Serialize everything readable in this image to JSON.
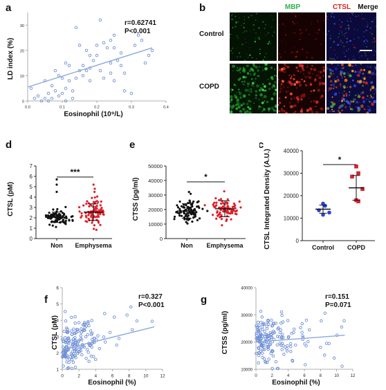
{
  "panels": {
    "a": {
      "letter": "a",
      "r": "r=0.62741",
      "p": "P<0.001",
      "xlabel": "Eosinophil (10⁹/L)",
      "ylabel": "LD index (%)",
      "xticks": [
        "0.0",
        "0.1",
        "0.2",
        "0.3",
        "0.4"
      ],
      "yticks": [
        "0",
        "10",
        "20",
        "30"
      ]
    },
    "b": {
      "letter": "b",
      "col_labels": [
        "MBP",
        "CTSL",
        "Merge"
      ],
      "col_colors": [
        "#2bb34a",
        "#e02020",
        "#111111"
      ],
      "row_labels": [
        "Control",
        "COPD"
      ]
    },
    "d": {
      "letter": "d",
      "ylabel": "CTSL (pM)",
      "stars": "***",
      "categories": [
        "Non",
        "Emphysema"
      ],
      "yticks": [
        "0",
        "1",
        "2",
        "3",
        "4",
        "5",
        "6",
        "7"
      ]
    },
    "e": {
      "letter": "e",
      "ylabel": "CTSS (pg/ml)",
      "stars": "*",
      "categories": [
        "Non",
        "Emphysema"
      ],
      "yticks": [
        "0",
        "10000",
        "20000",
        "30000",
        "40000",
        "50000"
      ]
    },
    "c": {
      "letter": "c",
      "ylabel": "CTSL Integrated Density (A.U.)",
      "stars": "*",
      "categories": [
        "Control",
        "COPD"
      ],
      "yticks": [
        "0",
        "10000",
        "20000",
        "30000",
        "40000"
      ]
    },
    "f": {
      "letter": "f",
      "r": "r=0.327",
      "p": "P<0.001",
      "xlabel": "Eosinophil (%)",
      "ylabel": "CTSL (pM)",
      "xticks": [
        "0",
        "2",
        "4",
        "6",
        "8",
        "10",
        "12"
      ],
      "yticks": [
        "1",
        "2",
        "3",
        "4",
        "5",
        "6"
      ]
    },
    "g": {
      "letter": "g",
      "r": "r=0.151",
      "p": "P=0.071",
      "xlabel": "Eosinophil (%)",
      "ylabel": "CTSS (pg/ml)",
      "xticks": [
        "0",
        "2",
        "4",
        "6",
        "8",
        "10",
        "12"
      ],
      "yticks": [
        "10000",
        "20000",
        "30000",
        "40000"
      ]
    }
  },
  "colors": {
    "scatter": "#6f8fd6",
    "line": "#8aa8dc",
    "non": "#111111",
    "emph": "#e0202a",
    "control": "#2a45d8",
    "copd": "#d8202a"
  },
  "chart_data": [
    {
      "type": "scatter",
      "panel": "a",
      "xlabel": "Eosinophil (10⁹/L)",
      "ylabel": "LD index (%)",
      "xlim": [
        0,
        0.4
      ],
      "ylim": [
        0,
        35
      ],
      "fit": {
        "x": [
          0.0,
          0.36
        ],
        "y": [
          5.5,
          21
        ]
      },
      "points": [
        [
          0.01,
          5
        ],
        [
          0.02,
          1
        ],
        [
          0.03,
          2
        ],
        [
          0.04,
          0
        ],
        [
          0.05,
          8
        ],
        [
          0.05,
          1
        ],
        [
          0.06,
          3
        ],
        [
          0.06,
          0
        ],
        [
          0.07,
          1
        ],
        [
          0.07,
          6
        ],
        [
          0.08,
          4
        ],
        [
          0.08,
          12
        ],
        [
          0.09,
          2
        ],
        [
          0.09,
          10
        ],
        [
          0.1,
          9
        ],
        [
          0.1,
          3
        ],
        [
          0.11,
          5
        ],
        [
          0.11,
          15
        ],
        [
          0.12,
          14
        ],
        [
          0.12,
          8
        ],
        [
          0.13,
          4
        ],
        [
          0.13,
          1
        ],
        [
          0.14,
          9
        ],
        [
          0.14,
          29
        ],
        [
          0.15,
          12
        ],
        [
          0.15,
          22
        ],
        [
          0.16,
          14
        ],
        [
          0.16,
          10
        ],
        [
          0.17,
          12
        ],
        [
          0.17,
          20
        ],
        [
          0.18,
          13
        ],
        [
          0.18,
          18
        ],
        [
          0.19,
          16
        ],
        [
          0.2,
          22
        ],
        [
          0.2,
          18
        ],
        [
          0.21,
          12
        ],
        [
          0.21,
          32
        ],
        [
          0.22,
          9
        ],
        [
          0.22,
          23
        ],
        [
          0.23,
          21
        ],
        [
          0.24,
          15
        ],
        [
          0.24,
          11
        ],
        [
          0.25,
          8
        ],
        [
          0.25,
          21
        ],
        [
          0.26,
          16
        ],
        [
          0.27,
          14
        ],
        [
          0.27,
          19
        ],
        [
          0.28,
          4
        ],
        [
          0.28,
          11
        ],
        [
          0.3,
          3
        ],
        [
          0.31,
          22
        ],
        [
          0.32,
          26
        ],
        [
          0.33,
          24
        ],
        [
          0.34,
          15
        ],
        [
          0.35,
          18
        ],
        [
          0.36,
          20
        ],
        [
          0.24,
          24
        ],
        [
          0.25,
          26
        ],
        [
          0.18,
          8
        ],
        [
          0.11,
          0
        ]
      ]
    },
    {
      "type": "scatter",
      "panel": "d",
      "categories": [
        "Non",
        "Emphysema"
      ],
      "ylabel": "CTSL (pM)",
      "ylim": [
        0,
        7
      ],
      "series": [
        {
          "group": "Non",
          "mean": 2.05,
          "sd": 0.5,
          "count": 90,
          "outliers": [
            5.7,
            5.2,
            4.5
          ]
        },
        {
          "group": "Emphysema",
          "mean": 2.55,
          "sd": 0.8,
          "count": 90,
          "outliers": [
            5.2,
            4.8,
            4.5
          ]
        }
      ]
    },
    {
      "type": "scatter",
      "panel": "e",
      "categories": [
        "Non",
        "Emphysema"
      ],
      "ylabel": "CTSS (pg/ml)",
      "ylim": [
        0,
        50000
      ],
      "series": [
        {
          "group": "Non",
          "mean": 19000,
          "sd": 5000,
          "count": 90,
          "outliers": []
        },
        {
          "group": "Emphysema",
          "mean": 20500,
          "sd": 5500,
          "count": 90,
          "outliers": []
        }
      ]
    },
    {
      "type": "scatter",
      "panel": "c",
      "categories": [
        "Control",
        "COPD"
      ],
      "ylabel": "CTSL Integrated Density (A.U.)",
      "ylim": [
        0,
        40000
      ],
      "series": [
        {
          "group": "Control",
          "mean": 14000,
          "sd": 1800,
          "points": [
            16500,
            15500,
            13500,
            12500,
            11500
          ]
        },
        {
          "group": "COPD",
          "mean": 23500,
          "sd": 5500,
          "points": [
            33000,
            30000,
            28500,
            23000,
            18000,
            17500
          ]
        }
      ]
    },
    {
      "type": "scatter",
      "panel": "f",
      "xlabel": "Eosinophil (%)",
      "ylabel": "CTSL (pM)",
      "xlim": [
        0,
        12
      ],
      "ylim": [
        1,
        6
      ],
      "fit": {
        "x": [
          0,
          11
        ],
        "y": [
          2.2,
          3.6
        ]
      },
      "count": 180,
      "xcenter": 1.5,
      "ycenter": 2.4
    },
    {
      "type": "scatter",
      "panel": "g",
      "xlabel": "Eosinophil (%)",
      "ylabel": "CTSS (pg/ml)",
      "xlim": [
        0,
        12
      ],
      "ylim": [
        10000,
        40000
      ],
      "fit": {
        "x": [
          0,
          11
        ],
        "y": [
          20000,
          22500
        ]
      },
      "count": 180,
      "xcenter": 1.5,
      "ycenter": 20500
    }
  ]
}
